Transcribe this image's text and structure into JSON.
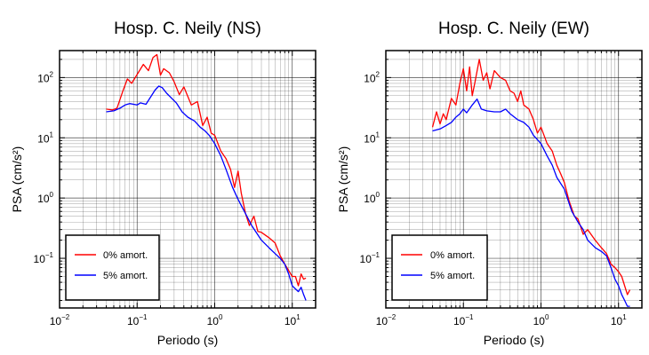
{
  "chart_data": [
    {
      "type": "line",
      "title": "Hosp. C. Neily (NS)",
      "xlabel": "Periodo (s)",
      "ylabel": "PSA (cm/s²)",
      "xscale": "log",
      "yscale": "log",
      "xlim": [
        0.01,
        20
      ],
      "ylim": [
        0.015,
        280
      ],
      "x_ticks": [
        {
          "base": "10",
          "exp": "−2"
        },
        {
          "base": "10",
          "exp": "−1"
        },
        {
          "base": "10",
          "exp": "0"
        },
        {
          "base": "10",
          "exp": "1"
        }
      ],
      "y_ticks": [
        {
          "base": "10",
          "exp": "−1"
        },
        {
          "base": "10",
          "exp": "0"
        },
        {
          "base": "10",
          "exp": "1"
        },
        {
          "base": "10",
          "exp": "2"
        }
      ],
      "grid": true,
      "legend_position": "bottom-left",
      "series": [
        {
          "name": "0% amort.",
          "color": "#ff0000",
          "points": [
            [
              0.04,
              30
            ],
            [
              0.048,
              29
            ],
            [
              0.055,
              31
            ],
            [
              0.065,
              58
            ],
            [
              0.075,
              95
            ],
            [
              0.085,
              80
            ],
            [
              0.1,
              112
            ],
            [
              0.12,
              165
            ],
            [
              0.14,
              130
            ],
            [
              0.16,
              215
            ],
            [
              0.18,
              240
            ],
            [
              0.2,
              110
            ],
            [
              0.22,
              140
            ],
            [
              0.26,
              120
            ],
            [
              0.3,
              85
            ],
            [
              0.35,
              52
            ],
            [
              0.4,
              70
            ],
            [
              0.5,
              35
            ],
            [
              0.6,
              40
            ],
            [
              0.7,
              16
            ],
            [
              0.8,
              22
            ],
            [
              0.9,
              12
            ],
            [
              1.0,
              11
            ],
            [
              1.2,
              6
            ],
            [
              1.4,
              4.5
            ],
            [
              1.6,
              3
            ],
            [
              1.8,
              1.5
            ],
            [
              2.0,
              2.8
            ],
            [
              2.2,
              1.2
            ],
            [
              2.5,
              0.55
            ],
            [
              2.8,
              0.35
            ],
            [
              3.2,
              0.5
            ],
            [
              3.6,
              0.28
            ],
            [
              4.0,
              0.27
            ],
            [
              5.0,
              0.22
            ],
            [
              6.0,
              0.18
            ],
            [
              7.0,
              0.11
            ],
            [
              8.0,
              0.08
            ],
            [
              10.0,
              0.05
            ],
            [
              11.0,
              0.05
            ],
            [
              12.0,
              0.035
            ],
            [
              13.0,
              0.055
            ],
            [
              14.0,
              0.045
            ],
            [
              15.0,
              0.047
            ]
          ]
        },
        {
          "name": "5% amort.",
          "color": "#0000ff",
          "points": [
            [
              0.04,
              27
            ],
            [
              0.05,
              28
            ],
            [
              0.06,
              31
            ],
            [
              0.07,
              35
            ],
            [
              0.08,
              37
            ],
            [
              0.09,
              36
            ],
            [
              0.1,
              35
            ],
            [
              0.11,
              38
            ],
            [
              0.13,
              36
            ],
            [
              0.15,
              48
            ],
            [
              0.17,
              62
            ],
            [
              0.19,
              72
            ],
            [
              0.21,
              68
            ],
            [
              0.24,
              55
            ],
            [
              0.28,
              45
            ],
            [
              0.32,
              38
            ],
            [
              0.38,
              27
            ],
            [
              0.45,
              22
            ],
            [
              0.55,
              19
            ],
            [
              0.65,
              15
            ],
            [
              0.75,
              13
            ],
            [
              0.85,
              11
            ],
            [
              1.0,
              8
            ],
            [
              1.2,
              5
            ],
            [
              1.4,
              3
            ],
            [
              1.7,
              1.5
            ],
            [
              2.0,
              0.95
            ],
            [
              2.5,
              0.55
            ],
            [
              3.0,
              0.35
            ],
            [
              4.0,
              0.2
            ],
            [
              5.0,
              0.15
            ],
            [
              6.0,
              0.12
            ],
            [
              7.0,
              0.1
            ],
            [
              8.0,
              0.08
            ],
            [
              9.0,
              0.055
            ],
            [
              10.0,
              0.035
            ],
            [
              12.0,
              0.028
            ],
            [
              13.0,
              0.033
            ],
            [
              14.0,
              0.025
            ],
            [
              15.0,
              0.02
            ]
          ]
        }
      ]
    },
    {
      "type": "line",
      "title": "Hosp. C. Neily (EW)",
      "xlabel": "Periodo (s)",
      "ylabel": "PSA (cm/s²)",
      "xscale": "log",
      "yscale": "log",
      "xlim": [
        0.01,
        20
      ],
      "ylim": [
        0.015,
        280
      ],
      "x_ticks": [
        {
          "base": "10",
          "exp": "−2"
        },
        {
          "base": "10",
          "exp": "−1"
        },
        {
          "base": "10",
          "exp": "0"
        },
        {
          "base": "10",
          "exp": "1"
        }
      ],
      "y_ticks": [
        {
          "base": "10",
          "exp": "−1"
        },
        {
          "base": "10",
          "exp": "0"
        },
        {
          "base": "10",
          "exp": "1"
        },
        {
          "base": "10",
          "exp": "2"
        }
      ],
      "grid": true,
      "legend_position": "bottom-left",
      "series": [
        {
          "name": "0% amort.",
          "color": "#ff0000",
          "points": [
            [
              0.04,
              15
            ],
            [
              0.045,
              27
            ],
            [
              0.05,
              17
            ],
            [
              0.055,
              25
            ],
            [
              0.06,
              20
            ],
            [
              0.07,
              45
            ],
            [
              0.08,
              35
            ],
            [
              0.09,
              80
            ],
            [
              0.1,
              140
            ],
            [
              0.11,
              60
            ],
            [
              0.12,
              150
            ],
            [
              0.13,
              50
            ],
            [
              0.14,
              80
            ],
            [
              0.16,
              200
            ],
            [
              0.18,
              90
            ],
            [
              0.2,
              120
            ],
            [
              0.22,
              65
            ],
            [
              0.25,
              130
            ],
            [
              0.3,
              100
            ],
            [
              0.35,
              90
            ],
            [
              0.4,
              60
            ],
            [
              0.45,
              55
            ],
            [
              0.5,
              40
            ],
            [
              0.55,
              60
            ],
            [
              0.6,
              35
            ],
            [
              0.7,
              30
            ],
            [
              0.8,
              20
            ],
            [
              0.9,
              12
            ],
            [
              1.0,
              15
            ],
            [
              1.2,
              8
            ],
            [
              1.4,
              6
            ],
            [
              1.6,
              3.5
            ],
            [
              1.8,
              2.5
            ],
            [
              2.0,
              1.8
            ],
            [
              2.3,
              0.9
            ],
            [
              2.7,
              0.5
            ],
            [
              3.0,
              0.45
            ],
            [
              3.5,
              0.25
            ],
            [
              4.0,
              0.3
            ],
            [
              5.0,
              0.2
            ],
            [
              6.0,
              0.15
            ],
            [
              7.0,
              0.12
            ],
            [
              8.0,
              0.08
            ],
            [
              9.0,
              0.07
            ],
            [
              10.0,
              0.06
            ],
            [
              11.0,
              0.05
            ],
            [
              12.0,
              0.035
            ],
            [
              13.0,
              0.025
            ],
            [
              14.0,
              0.03
            ]
          ]
        },
        {
          "name": "5% amort.",
          "color": "#0000ff",
          "points": [
            [
              0.04,
              13
            ],
            [
              0.05,
              14
            ],
            [
              0.06,
              16
            ],
            [
              0.07,
              18
            ],
            [
              0.08,
              22
            ],
            [
              0.09,
              25
            ],
            [
              0.1,
              30
            ],
            [
              0.11,
              26
            ],
            [
              0.13,
              35
            ],
            [
              0.15,
              44
            ],
            [
              0.17,
              30
            ],
            [
              0.2,
              28
            ],
            [
              0.25,
              27
            ],
            [
              0.3,
              27
            ],
            [
              0.35,
              30
            ],
            [
              0.4,
              25
            ],
            [
              0.5,
              20
            ],
            [
              0.6,
              18
            ],
            [
              0.7,
              15
            ],
            [
              0.8,
              11
            ],
            [
              1.0,
              8
            ],
            [
              1.2,
              5
            ],
            [
              1.4,
              3.5
            ],
            [
              1.6,
              2.2
            ],
            [
              2.0,
              1.4
            ],
            [
              2.5,
              0.6
            ],
            [
              3.0,
              0.4
            ],
            [
              3.5,
              0.3
            ],
            [
              4.0,
              0.2
            ],
            [
              5.0,
              0.15
            ],
            [
              6.0,
              0.13
            ],
            [
              7.0,
              0.11
            ],
            [
              8.0,
              0.07
            ],
            [
              9.0,
              0.045
            ],
            [
              10.0,
              0.035
            ],
            [
              11.0,
              0.025
            ],
            [
              12.0,
              0.02
            ],
            [
              13.0,
              0.016
            ],
            [
              14.0,
              0.016
            ]
          ]
        }
      ]
    }
  ]
}
